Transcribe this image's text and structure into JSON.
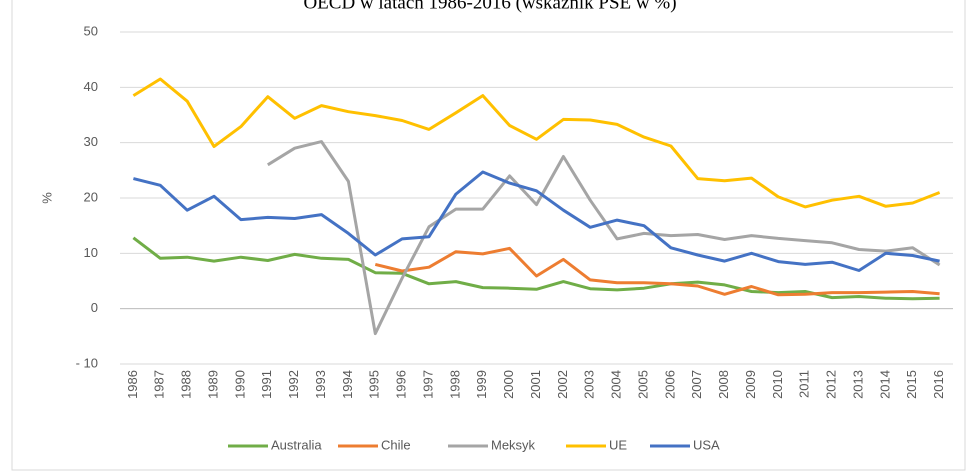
{
  "chart_data": {
    "type": "line",
    "title": "OECD w latach 1986-2016 (wskaźnik PSE w %)",
    "y_label": "%",
    "categories": [
      "1986",
      "1987",
      "1988",
      "1989",
      "1990",
      "1991",
      "1992",
      "1993",
      "1994",
      "1995",
      "1996",
      "1997",
      "1998",
      "1999",
      "2000",
      "2001",
      "2002",
      "2003",
      "2004",
      "2005",
      "2006",
      "2007",
      "2008",
      "2009",
      "2010",
      "2011",
      "2012",
      "2013",
      "2014",
      "2015",
      "2016"
    ],
    "series": [
      {
        "name": "Australia",
        "color": "#70ad47",
        "values": [
          12.8,
          9.1,
          9.3,
          8.6,
          9.3,
          8.7,
          9.8,
          9.1,
          8.9,
          6.5,
          6.4,
          4.5,
          4.9,
          3.8,
          3.7,
          3.5,
          4.9,
          3.6,
          3.4,
          3.7,
          4.5,
          4.8,
          4.3,
          3.1,
          2.9,
          3.1,
          2.0,
          2.2,
          1.9,
          1.8,
          1.9
        ]
      },
      {
        "name": "Chile",
        "color": "#ed7d31",
        "values": [
          null,
          null,
          null,
          null,
          null,
          null,
          null,
          null,
          null,
          8.0,
          6.8,
          7.5,
          10.3,
          9.9,
          10.9,
          5.9,
          8.9,
          5.2,
          4.7,
          4.7,
          4.5,
          4.1,
          2.6,
          4.0,
          2.5,
          2.6,
          2.9,
          2.9,
          3.0,
          3.1,
          2.7
        ]
      },
      {
        "name": "Meksyk",
        "color": "#a5a5a5",
        "values": [
          null,
          null,
          null,
          null,
          null,
          26.0,
          29.0,
          30.2,
          23.0,
          -4.5,
          5.5,
          14.8,
          18.0,
          18.0,
          24.0,
          18.8,
          27.5,
          19.6,
          12.6,
          13.6,
          13.2,
          13.4,
          12.5,
          13.2,
          12.7,
          12.3,
          11.9,
          10.7,
          10.4,
          11.0,
          7.9
        ]
      },
      {
        "name": "UE",
        "color": "#ffc000",
        "values": [
          38.5,
          41.5,
          37.5,
          29.3,
          32.9,
          38.3,
          34.4,
          36.7,
          35.6,
          34.9,
          34.0,
          32.4,
          35.4,
          38.5,
          33.1,
          30.6,
          34.2,
          34.1,
          33.3,
          31.0,
          29.4,
          23.5,
          23.1,
          23.6,
          20.2,
          18.4,
          19.6,
          20.3,
          18.5,
          19.1,
          21.0
        ]
      },
      {
        "name": "USA",
        "color": "#4472c4",
        "values": [
          23.5,
          22.3,
          17.8,
          20.3,
          16.1,
          16.5,
          16.3,
          17.0,
          13.6,
          9.7,
          12.6,
          13.0,
          20.7,
          24.7,
          22.7,
          21.3,
          17.8,
          14.7,
          16.0,
          15.0,
          11.0,
          9.7,
          8.6,
          10.0,
          8.5,
          8.0,
          8.4,
          6.9,
          10.0,
          9.6,
          8.6
        ]
      }
    ],
    "ylim": [
      -10,
      50
    ],
    "yticks": [
      {
        "value": -10,
        "label": "- 10"
      },
      0,
      10,
      20,
      30,
      40,
      50
    ],
    "grid": true,
    "legend": "bottom"
  }
}
